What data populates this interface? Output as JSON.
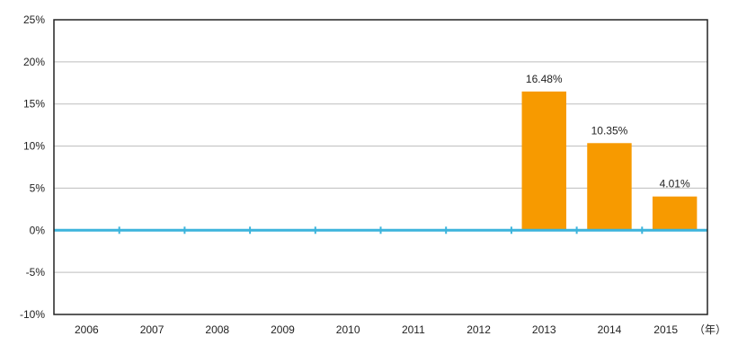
{
  "chart_data": {
    "type": "bar",
    "categories": [
      "2006",
      "2007",
      "2008",
      "2009",
      "2010",
      "2011",
      "2012",
      "2013",
      "2014",
      "2015"
    ],
    "values": [
      0,
      0,
      0,
      0,
      0,
      0,
      0,
      16.48,
      10.35,
      4.01
    ],
    "data_labels": [
      "",
      "",
      "",
      "",
      "",
      "",
      "",
      "16.48%",
      "10.35%",
      "4.01%"
    ],
    "y_tick_values": [
      25,
      20,
      15,
      10,
      5,
      0,
      -5,
      -10
    ],
    "y_tick_labels": [
      "25%",
      "20%",
      "15%",
      "10%",
      "5%",
      "0%",
      "-5%",
      "-10%"
    ],
    "ylim": [
      -10,
      25
    ],
    "x_unit_label": "（年）",
    "title": "",
    "xlabel": "",
    "ylabel": "",
    "grid": true,
    "legend": "none",
    "colors": {
      "bar": "#f79a00",
      "zero_line": "#3cb4dc",
      "grid": "#bdbdbd",
      "frame": "#222222"
    }
  }
}
